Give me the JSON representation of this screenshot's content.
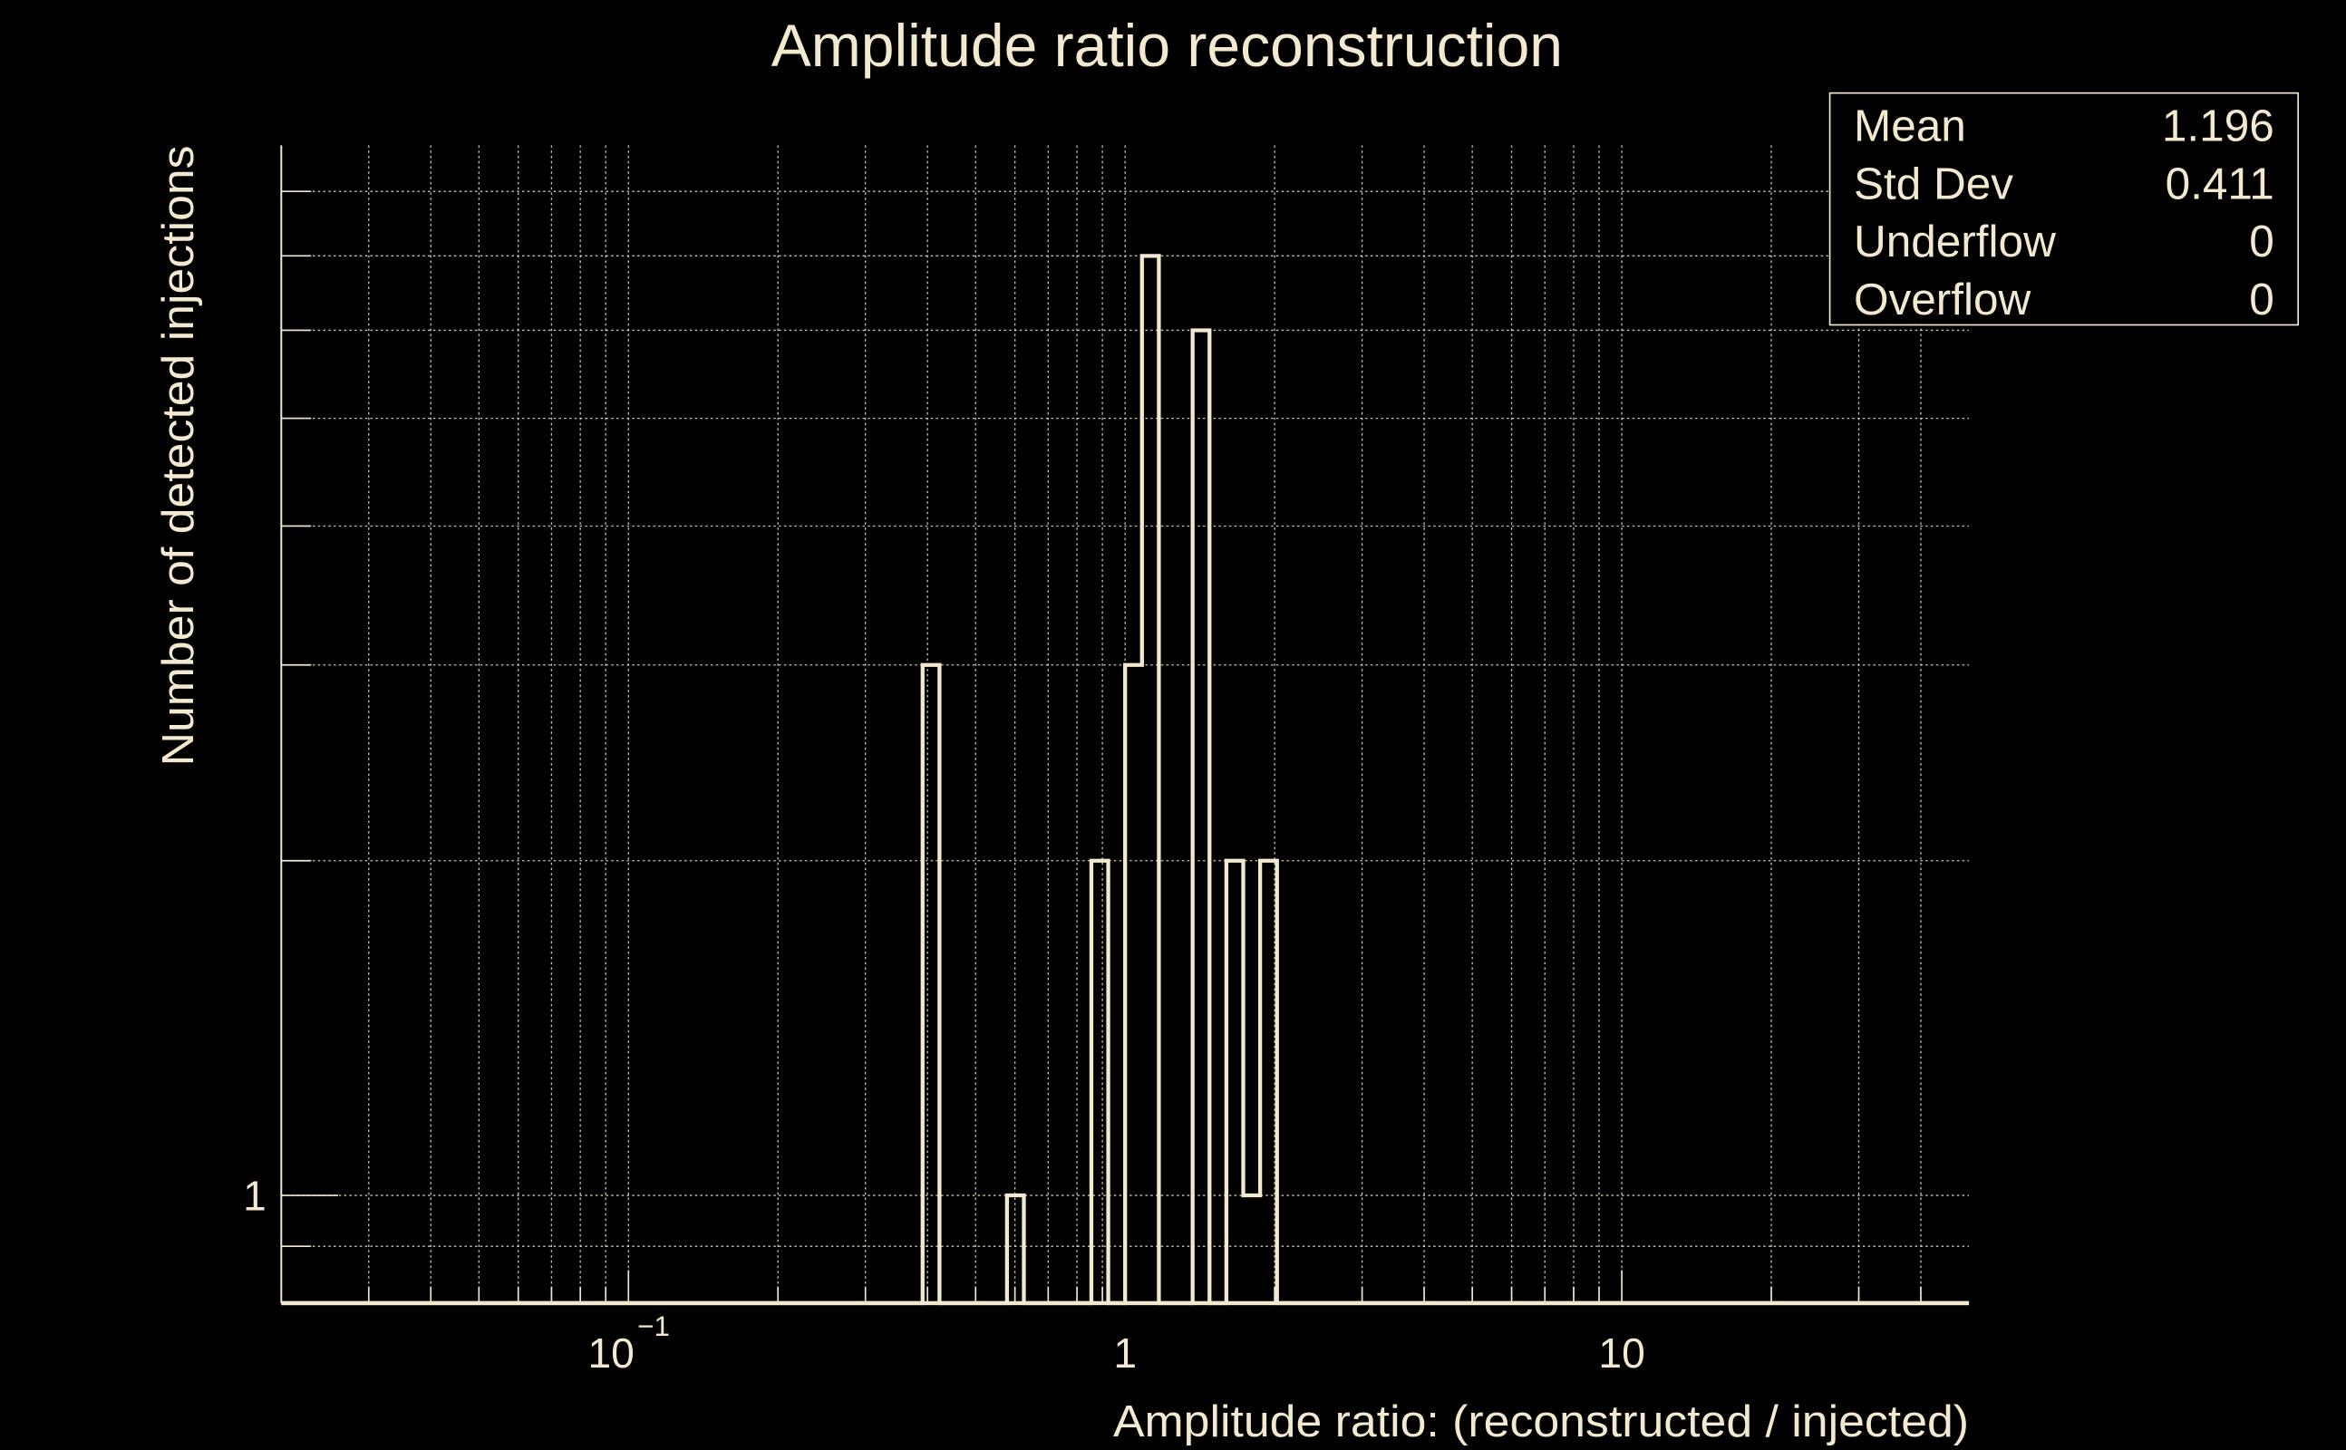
{
  "chart_data": {
    "type": "bar",
    "subtype": "histogram",
    "title": "Amplitude ratio reconstruction",
    "xlabel": "Amplitude ratio: (reconstructed / injected)",
    "ylabel": "Number of detected injections",
    "xscale": "log",
    "yscale": "log",
    "xlim": [
      0.02,
      50
    ],
    "ylim": [
      0.8,
      8.8
    ],
    "nbins": 100,
    "grid": true,
    "x_tick_labels": [
      {
        "value": 0.1,
        "base": "10",
        "exp": "−1"
      },
      {
        "value": 1,
        "base": "1",
        "exp": ""
      },
      {
        "value": 10,
        "base": "10",
        "exp": ""
      }
    ],
    "y_tick_labels": [
      {
        "value": 1,
        "label": "1"
      }
    ],
    "y_gridlines": [
      0.9,
      1,
      2,
      3,
      4,
      5,
      6,
      7,
      8
    ],
    "bins": [
      {
        "bin_index": 38,
        "center": 0.406,
        "count": 3
      },
      {
        "bin_index": 43,
        "center": 0.6,
        "count": 1
      },
      {
        "bin_index": 48,
        "center": 0.888,
        "count": 2
      },
      {
        "bin_index": 50,
        "center": 1.038,
        "count": 3
      },
      {
        "bin_index": 51,
        "center": 1.123,
        "count": 7
      },
      {
        "bin_index": 54,
        "center": 1.42,
        "count": 6
      },
      {
        "bin_index": 56,
        "center": 1.661,
        "count": 2
      },
      {
        "bin_index": 57,
        "center": 1.796,
        "count": 1
      },
      {
        "bin_index": 58,
        "center": 1.942,
        "count": 2
      }
    ],
    "stats": [
      {
        "label": "Mean",
        "value": "1.196"
      },
      {
        "label": "Std Dev",
        "value": "0.411"
      },
      {
        "label": "Underflow",
        "value": "0"
      },
      {
        "label": "Overflow",
        "value": "0"
      }
    ],
    "colors": {
      "foreground": "#f3e9cf",
      "background": "#000000"
    }
  }
}
